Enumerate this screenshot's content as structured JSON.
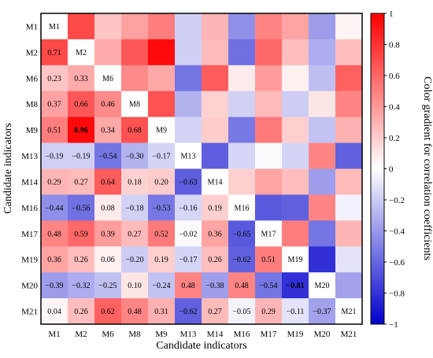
{
  "chart_data": {
    "type": "heatmap",
    "labels": [
      "M1",
      "M2",
      "M6",
      "M8",
      "M9",
      "M13",
      "M14",
      "M16",
      "M17",
      "M19",
      "M20",
      "M21"
    ],
    "xlabel": "Candidate indicators",
    "ylabel": "Candidate indicators",
    "colorbar": {
      "label": "Color gradient for correlation coefficients",
      "range": [
        -1,
        1
      ],
      "ticks": [
        1,
        0.8,
        0.6,
        0.4,
        0.2,
        0,
        -0.2,
        -0.4,
        -0.6,
        -0.8,
        -1
      ],
      "tick_labels": [
        "1",
        "0.8",
        "0.6",
        "0.4",
        "0.2",
        "0",
        "−0.2",
        "−0.4",
        "−0.6",
        "−0.8",
        "−1"
      ],
      "colors": {
        "low": "#0000cc",
        "mid": "#ffffff",
        "high": "#ff0000"
      }
    },
    "bold_values": [
      "M9|M2",
      "M20|M19"
    ],
    "lower_values": [
      [],
      [
        0.71
      ],
      [
        0.23,
        0.33
      ],
      [
        0.37,
        0.66,
        0.46
      ],
      [
        0.51,
        0.96,
        0.34,
        0.68
      ],
      [
        -0.19,
        -0.19,
        -0.54,
        -0.3,
        -0.17
      ],
      [
        0.29,
        0.27,
        0.64,
        0.18,
        0.2,
        -0.63
      ],
      [
        -0.44,
        -0.56,
        0.08,
        -0.18,
        -0.53,
        -0.16,
        0.19
      ],
      [
        0.48,
        0.59,
        0.39,
        0.27,
        0.52,
        -0.02,
        0.36,
        -0.65
      ],
      [
        0.36,
        0.26,
        0.06,
        -0.2,
        0.19,
        -0.17,
        0.26,
        -0.62,
        0.51
      ],
      [
        -0.39,
        -0.32,
        -0.25,
        0.1,
        -0.24,
        0.48,
        -0.38,
        0.48,
        -0.54,
        -0.81
      ],
      [
        0.04,
        0.26,
        0.62,
        0.48,
        0.31,
        -0.62,
        0.27,
        -0.05,
        0.29,
        -0.11,
        -0.37
      ]
    ],
    "lower_labels": [
      [],
      [
        "0.71"
      ],
      [
        "0.23",
        "0.33"
      ],
      [
        "0.37",
        "0.66",
        "0.46"
      ],
      [
        "0.51",
        "0.96",
        "0.34",
        "0.68"
      ],
      [
        "−0.19",
        "−0.19",
        "−0.54",
        "−0.30",
        "−0.17"
      ],
      [
        "0.29",
        "0.27",
        "0.64",
        "0.18",
        "0.20",
        "−0.63"
      ],
      [
        "−0.44",
        "−0.56",
        "0.08",
        "−0.18",
        "−0.53",
        "−0.16",
        "0.19"
      ],
      [
        "0.48",
        "0.59",
        "0.39",
        "0.27",
        "0.52",
        "−0.02",
        "0.36",
        "−0.65"
      ],
      [
        "0.36",
        "0.26",
        "0.06",
        "−0.20",
        "0.19",
        "−0.17",
        "0.26",
        "−0.62",
        "0.51"
      ],
      [
        "−0.39",
        "−0.32",
        "−0.25",
        "0.10",
        "−0.24",
        "0.48",
        "−0.38",
        "0.48",
        "−0.54",
        "−0.81"
      ],
      [
        "0.04",
        "0.26",
        "0.62",
        "0.48",
        "0.31",
        "−0.62",
        "0.27",
        "−0.05",
        "0.29",
        "−0.11",
        "−0.37"
      ]
    ]
  }
}
